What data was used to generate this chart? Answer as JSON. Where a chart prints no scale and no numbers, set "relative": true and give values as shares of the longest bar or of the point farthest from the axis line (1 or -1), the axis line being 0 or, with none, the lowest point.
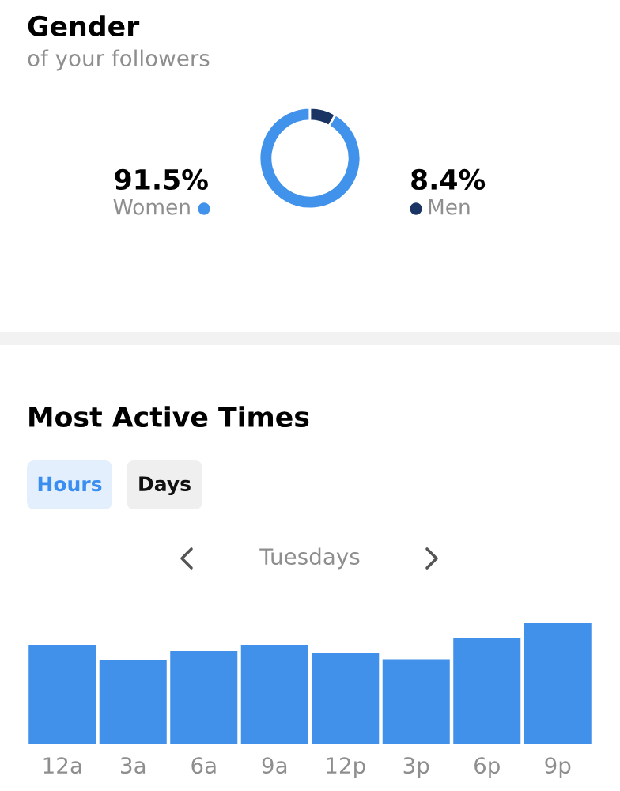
{
  "chart_data": [
    {
      "type": "donut",
      "title": "Gender",
      "subtitle": "of your followers",
      "categories": [
        "Women",
        "Men"
      ],
      "values": [
        91.5,
        8.4
      ],
      "colors": [
        "#4192ea",
        "#1a3564"
      ],
      "value_labels": [
        "91.5%",
        "8.4%"
      ]
    },
    {
      "type": "bar",
      "title": "Most Active Times",
      "annotations": [
        "Hours",
        "Days",
        "Tuesdays"
      ],
      "relative": true,
      "categories": [
        "12a",
        "3a",
        "6a",
        "9a",
        "12p",
        "3p",
        "6p",
        "9p"
      ],
      "values": [
        0.82,
        0.69,
        0.77,
        0.82,
        0.75,
        0.7,
        0.88,
        1
      ],
      "color": "#4190ea"
    }
  ]
}
